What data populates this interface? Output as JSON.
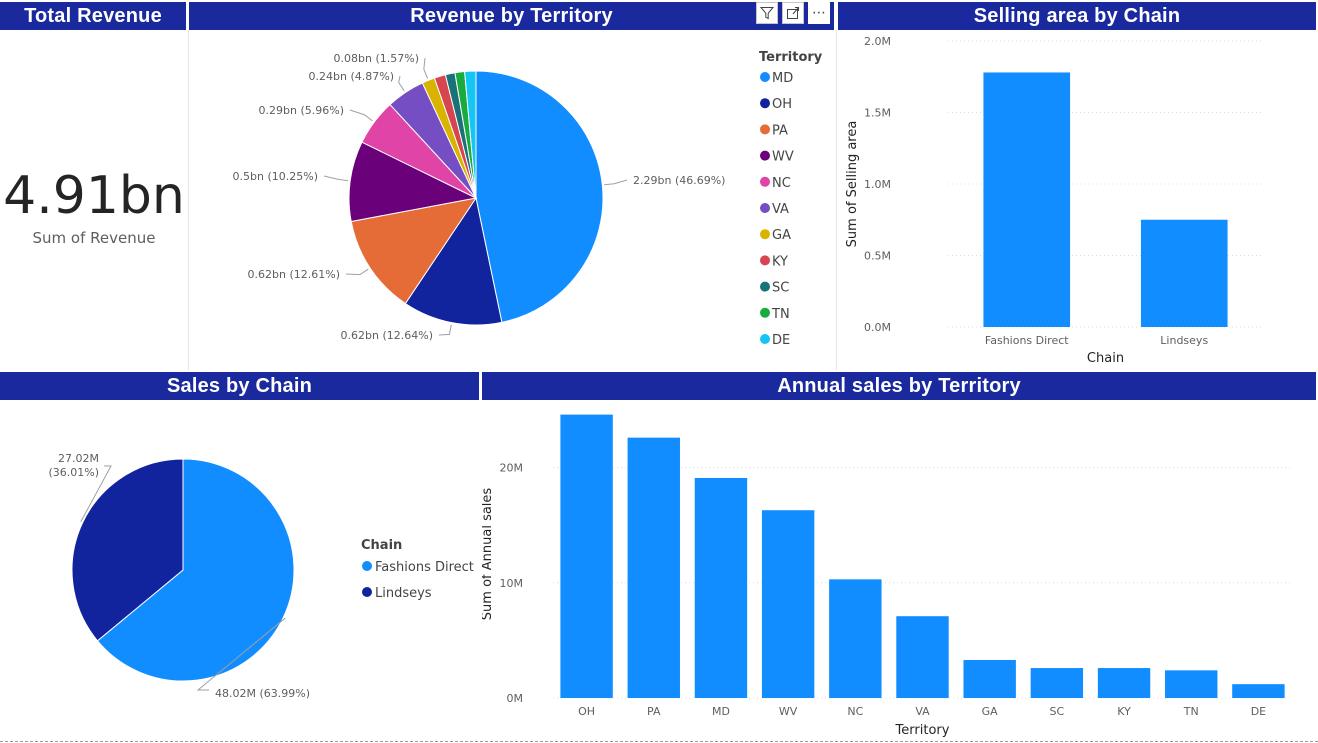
{
  "colors": {
    "header_bg": "#1a2a9e",
    "header_text": "#ffffff",
    "bar": "#118dff",
    "grid": "#e1dfdd"
  },
  "kpi": {
    "title": "Total Revenue",
    "value": "4.91bn",
    "label": "Sum of Revenue"
  },
  "toolbar": {
    "filter_icon": "filter-icon",
    "focus_icon": "focus-mode-icon",
    "more_icon": "more-options-icon",
    "more_label": "⋯"
  },
  "chart_data": [
    {
      "id": "revenue_by_territory",
      "type": "pie",
      "title": "Revenue by Territory",
      "legend_title": "Territory",
      "legend_position": "right",
      "slices": [
        {
          "label": "MD",
          "value": 2.29,
          "pct": "46.69%",
          "data_label": "2.29bn (46.69%)",
          "color": "#118dff"
        },
        {
          "label": "OH",
          "value": 0.62,
          "pct": "12.64%",
          "data_label": "0.62bn (12.64%)",
          "color": "#12239e"
        },
        {
          "label": "PA",
          "value": 0.62,
          "pct": "12.61%",
          "data_label": "0.62bn (12.61%)",
          "color": "#e66c37"
        },
        {
          "label": "WV",
          "value": 0.5,
          "pct": "10.25%",
          "data_label": "0.5bn (10.25%)",
          "color": "#6b007b"
        },
        {
          "label": "NC",
          "value": 0.29,
          "pct": "5.96%",
          "data_label": "0.29bn (5.96%)",
          "color": "#e044a7"
        },
        {
          "label": "VA",
          "value": 0.24,
          "pct": "4.87%",
          "data_label": "0.24bn (4.87%)",
          "color": "#744ec2"
        },
        {
          "label": "GA",
          "value": 0.08,
          "pct": "1.57%",
          "data_label": "0.08bn (1.57%)",
          "color": "#d9b300"
        },
        {
          "label": "KY",
          "value": 0.07,
          "pct": "1.40%",
          "data_label": "",
          "color": "#d64550"
        },
        {
          "label": "SC",
          "value": 0.06,
          "pct": "1.30%",
          "data_label": "",
          "color": "#197278"
        },
        {
          "label": "TN",
          "value": 0.06,
          "pct": "1.30%",
          "data_label": "",
          "color": "#1aab40"
        },
        {
          "label": "DE",
          "value": 0.07,
          "pct": "1.40%",
          "data_label": "",
          "color": "#15c6f4"
        }
      ]
    },
    {
      "id": "selling_area_by_chain",
      "type": "bar",
      "title": "Selling area by Chain",
      "xlabel": "Chain",
      "ylabel": "Sum of Selling area",
      "categories": [
        "Fashions Direct",
        "Lindseys"
      ],
      "values": [
        1.78,
        0.75
      ],
      "ylim": [
        0,
        2.0
      ],
      "yticks": [
        0,
        0.5,
        1.0,
        1.5,
        2.0
      ],
      "ytick_labels": [
        "0.0M",
        "0.5M",
        "1.0M",
        "1.5M",
        "2.0M"
      ],
      "grid": true
    },
    {
      "id": "sales_by_chain",
      "type": "pie",
      "title": "Sales by Chain",
      "legend_title": "Chain",
      "legend_position": "right",
      "slices": [
        {
          "label": "Fashions Direct",
          "value": 48.02,
          "pct": "63.99%",
          "data_label": "48.02M (63.99%)",
          "color": "#118dff"
        },
        {
          "label": "Lindseys",
          "value": 27.02,
          "pct": "36.01%",
          "data_label_line1": "27.02M",
          "data_label_line2": "(36.01%)",
          "color": "#12239e"
        }
      ]
    },
    {
      "id": "annual_sales_by_territory",
      "type": "bar",
      "title": "Annual sales by Territory",
      "xlabel": "Territory",
      "ylabel": "Sum of Annual sales",
      "categories": [
        "OH",
        "PA",
        "MD",
        "WV",
        "NC",
        "VA",
        "GA",
        "SC",
        "KY",
        "TN",
        "DE"
      ],
      "values": [
        24.6,
        22.6,
        19.1,
        16.3,
        10.3,
        7.1,
        3.3,
        2.6,
        2.6,
        2.4,
        1.2
      ],
      "ylim": [
        0,
        25
      ],
      "yticks": [
        0,
        10,
        20
      ],
      "ytick_labels": [
        "0M",
        "10M",
        "20M"
      ],
      "grid": true
    }
  ]
}
